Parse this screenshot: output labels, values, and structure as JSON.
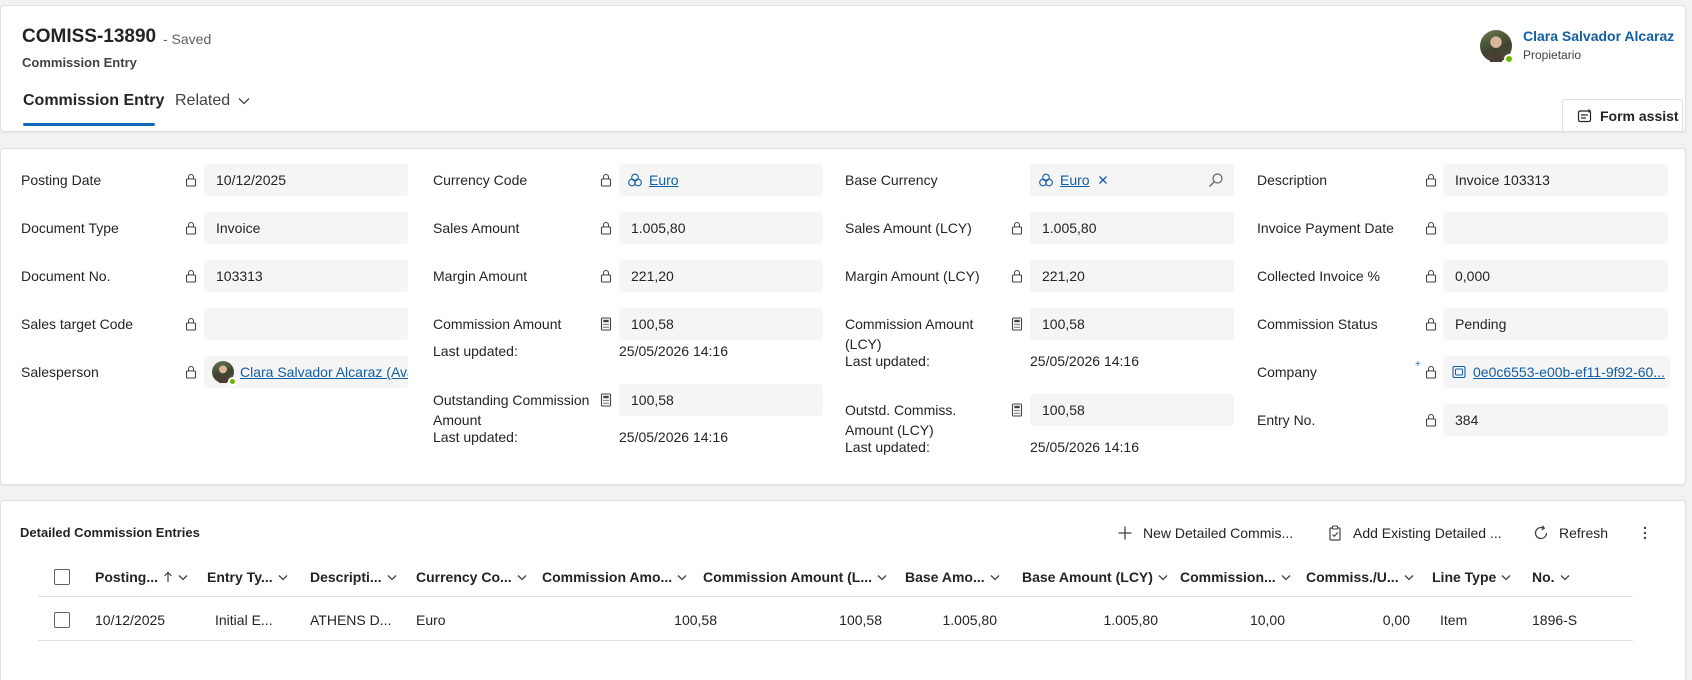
{
  "header": {
    "record_id": "COMISS-13890",
    "save_status": "- Saved",
    "entity_name": "Commission Entry",
    "tabs": [
      {
        "label": "Commission Entry"
      },
      {
        "label": "Related"
      }
    ],
    "owner": {
      "name": "Clara Salvador Alcaraz",
      "role": "Propietario"
    },
    "form_assist_label": "Form assist"
  },
  "fields": {
    "posting_date": {
      "label": "Posting Date",
      "value": "10/12/2025"
    },
    "document_type": {
      "label": "Document Type",
      "value": "Invoice"
    },
    "document_no": {
      "label": "Document No.",
      "value": "103313"
    },
    "sales_target_code": {
      "label": "Sales target Code",
      "value": ""
    },
    "salesperson": {
      "label": "Salesperson",
      "value": "Clara Salvador Alcaraz (Avai"
    },
    "currency_code": {
      "label": "Currency Code",
      "value": "Euro"
    },
    "sales_amount": {
      "label": "Sales Amount",
      "value": "1.005,80"
    },
    "margin_amount": {
      "label": "Margin Amount",
      "value": "221,20"
    },
    "commission_amount": {
      "label": "Commission Amount",
      "value": "100,58",
      "last_updated_label": "Last updated:",
      "last_updated": "25/05/2026 14:16"
    },
    "outstanding_commission": {
      "label_line1": "Outstanding Commission",
      "label_line2": "Amount",
      "value": "100,58",
      "last_updated_label": "Last updated:",
      "last_updated": "25/05/2026 14:16"
    },
    "base_currency": {
      "label": "Base Currency",
      "value": "Euro"
    },
    "sales_amount_lcy": {
      "label": "Sales Amount (LCY)",
      "value": "1.005,80"
    },
    "margin_amount_lcy": {
      "label": "Margin Amount (LCY)",
      "value": "221,20"
    },
    "commission_amount_lcy": {
      "label_line1": "Commission Amount",
      "label_line2": "(LCY)",
      "value": "100,58",
      "last_updated_label": "Last updated:",
      "last_updated": "25/05/2026 14:16"
    },
    "outstd_commiss_lcy": {
      "label_line1": "Outstd. Commiss.",
      "label_line2": "Amount (LCY)",
      "value": "100,58",
      "last_updated_label": "Last updated:",
      "last_updated": "25/05/2026 14:16"
    },
    "description": {
      "label": "Description",
      "value": "Invoice 103313"
    },
    "invoice_payment_date": {
      "label": "Invoice Payment Date",
      "value": ""
    },
    "collected_invoice_pct": {
      "label": "Collected Invoice %",
      "value": "0,000"
    },
    "commission_status": {
      "label": "Commission Status",
      "value": "Pending"
    },
    "company": {
      "label": "Company",
      "value": "0e0c6553-e00b-ef11-9f92-60..."
    },
    "entry_no": {
      "label": "Entry No.",
      "value": "384"
    }
  },
  "grid": {
    "title": "Detailed Commission Entries",
    "commands": {
      "new": "New Detailed Commis...",
      "add_existing": "Add Existing Detailed ...",
      "refresh": "Refresh"
    },
    "columns": [
      "Posting...",
      "Entry Ty...",
      "Descripti...",
      "Currency Co...",
      "Commission Amo...",
      "Commission Amount (L...",
      "Base Amo...",
      "Base Amount (LCY)",
      "Commission...",
      "Commiss./U...",
      "Line Type",
      "No."
    ],
    "rows": [
      [
        "10/12/2025",
        "Initial E...",
        "ATHENS D...",
        "Euro",
        "100,58",
        "100,58",
        "1.005,80",
        "1.005,80",
        "10,00",
        "0,00",
        "Item",
        "1896-S"
      ]
    ]
  },
  "colors": {
    "accent": "#0f6cbd",
    "link": "#115ea3",
    "presence": "#6bb700"
  }
}
